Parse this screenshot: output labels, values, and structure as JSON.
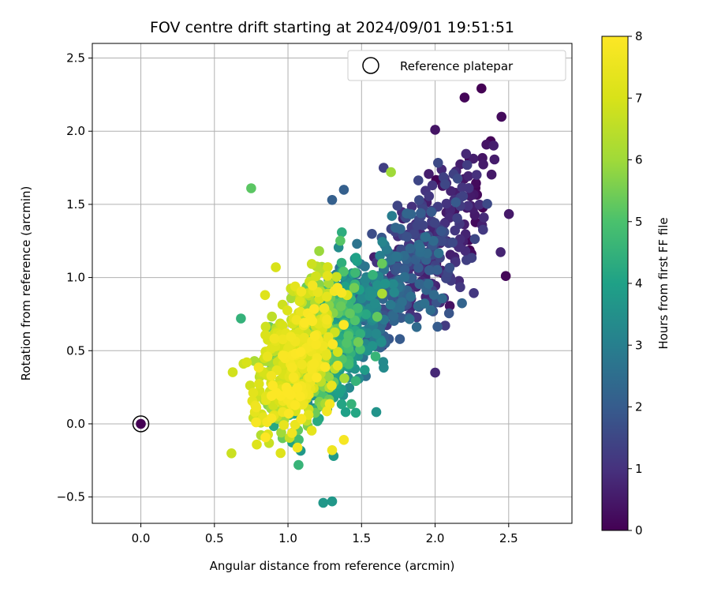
{
  "chart_data": {
    "type": "scatter",
    "title": "FOV centre drift starting at 2024/09/01 19:51:51",
    "xlabel": "Angular distance from reference (arcmin)",
    "ylabel": "Rotation from reference (arcmin)",
    "xlim": [
      -0.33,
      2.93
    ],
    "ylim": [
      -0.68,
      2.6
    ],
    "xticks": [
      0.0,
      0.5,
      1.0,
      1.5,
      2.0,
      2.5
    ],
    "xtick_labels": [
      "0.0",
      "0.5",
      "1.0",
      "1.5",
      "2.0",
      "2.5"
    ],
    "yticks": [
      -0.5,
      0.0,
      0.5,
      1.0,
      1.5,
      2.0,
      2.5
    ],
    "ytick_labels": [
      "−0.5",
      "0.0",
      "0.5",
      "1.0",
      "1.5",
      "2.0",
      "2.5"
    ],
    "grid": true,
    "legend": {
      "position": "top-right",
      "entries": [
        "Reference platepar"
      ]
    },
    "reference_point": {
      "x": 0.0,
      "y": 0.0
    },
    "colorbar": {
      "label": "Hours from first FF file",
      "colormap": "viridis",
      "range": [
        0,
        8
      ],
      "ticks": [
        0,
        1,
        2,
        3,
        4,
        5,
        6,
        7,
        8
      ],
      "tick_labels": [
        "0",
        "1",
        "2",
        "3",
        "4",
        "5",
        "6",
        "7",
        "8"
      ]
    },
    "point_clusters": [
      {
        "hours_range": [
          0.0,
          0.6
        ],
        "count": 42,
        "x_center": 2.2,
        "y_center": 1.55,
        "x_spread": 0.14,
        "y_spread": 0.32
      },
      {
        "hours_range": [
          0.6,
          1.6
        ],
        "count": 200,
        "x_center": 1.98,
        "y_center": 1.2,
        "x_spread": 0.18,
        "y_spread": 0.27
      },
      {
        "hours_range": [
          1.6,
          2.6
        ],
        "count": 160,
        "x_center": 1.72,
        "y_center": 0.9,
        "x_spread": 0.17,
        "y_spread": 0.25
      },
      {
        "hours_range": [
          2.6,
          3.6
        ],
        "count": 200,
        "x_center": 1.45,
        "y_center": 0.72,
        "x_spread": 0.14,
        "y_spread": 0.27
      },
      {
        "hours_range": [
          3.6,
          4.6
        ],
        "count": 180,
        "x_center": 1.3,
        "y_center": 0.55,
        "x_spread": 0.13,
        "y_spread": 0.28
      },
      {
        "hours_range": [
          4.6,
          5.6
        ],
        "count": 150,
        "x_center": 1.18,
        "y_center": 0.5,
        "x_spread": 0.15,
        "y_spread": 0.28
      },
      {
        "hours_range": [
          5.6,
          6.6
        ],
        "count": 150,
        "x_center": 1.08,
        "y_center": 0.5,
        "x_spread": 0.15,
        "y_spread": 0.3
      },
      {
        "hours_range": [
          6.6,
          7.4
        ],
        "count": 160,
        "x_center": 1.02,
        "y_center": 0.45,
        "x_spread": 0.15,
        "y_spread": 0.32
      },
      {
        "hours_range": [
          7.4,
          8.0
        ],
        "count": 120,
        "x_center": 1.1,
        "y_center": 0.42,
        "x_spread": 0.13,
        "y_spread": 0.28
      }
    ],
    "outlier_points": [
      {
        "x": 0.0,
        "y": 0.0,
        "h": 0.0
      },
      {
        "x": 2.2,
        "y": 2.23,
        "h": 0.1
      },
      {
        "x": 2.48,
        "y": 1.01,
        "h": 0.1
      },
      {
        "x": 2.0,
        "y": 2.01,
        "h": 0.4
      },
      {
        "x": 2.0,
        "y": 0.35,
        "h": 0.8
      },
      {
        "x": 1.38,
        "y": 1.6,
        "h": 2.1
      },
      {
        "x": 1.3,
        "y": 1.53,
        "h": 2.1
      },
      {
        "x": 0.75,
        "y": 1.61,
        "h": 5.2
      },
      {
        "x": 1.65,
        "y": 1.75,
        "h": 1.3
      },
      {
        "x": 1.7,
        "y": 1.72,
        "h": 6.0
      },
      {
        "x": 1.24,
        "y": -0.54,
        "h": 3.7
      },
      {
        "x": 1.3,
        "y": -0.53,
        "h": 3.7
      },
      {
        "x": 1.31,
        "y": -0.22,
        "h": 3.8
      },
      {
        "x": 1.6,
        "y": 0.08,
        "h": 3.6
      },
      {
        "x": 0.68,
        "y": 0.72,
        "h": 4.5
      },
      {
        "x": 1.64,
        "y": 0.89,
        "h": 6.2
      },
      {
        "x": 1.38,
        "y": -0.11,
        "h": 7.8
      },
      {
        "x": 1.3,
        "y": -0.18,
        "h": 7.6
      },
      {
        "x": 0.95,
        "y": -0.2,
        "h": 7.2
      },
      {
        "x": 0.72,
        "y": 0.42,
        "h": 7.0
      }
    ]
  }
}
